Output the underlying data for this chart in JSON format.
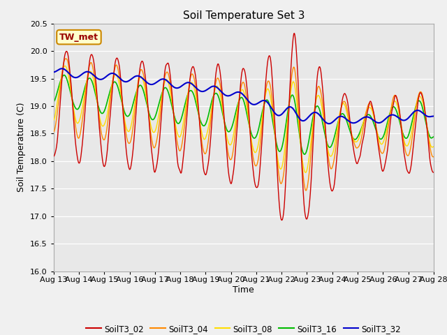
{
  "title": "Soil Temperature Set 3",
  "xlabel": "Time",
  "ylabel": "Soil Temperature (C)",
  "ylim": [
    16.0,
    20.5
  ],
  "xtick_labels": [
    "Aug 13",
    "Aug 14",
    "Aug 15",
    "Aug 16",
    "Aug 17",
    "Aug 18",
    "Aug 19",
    "Aug 20",
    "Aug 21",
    "Aug 22",
    "Aug 23",
    "Aug 24",
    "Aug 25",
    "Aug 26",
    "Aug 27",
    "Aug 28"
  ],
  "legend_labels": [
    "SoilT3_02",
    "SoilT3_04",
    "SoilT3_08",
    "SoilT3_16",
    "SoilT3_32"
  ],
  "colors": {
    "SoilT3_02": "#cc0000",
    "SoilT3_04": "#ff8800",
    "SoilT3_08": "#ffdd00",
    "SoilT3_16": "#00bb00",
    "SoilT3_32": "#0000cc"
  },
  "annotation_text": "TW_met",
  "annotation_color": "#990000",
  "annotation_bg": "#ffffcc",
  "annotation_border": "#cc8800",
  "fig_bg": "#f0f0f0",
  "plot_bg": "#e8e8e8",
  "grid_color": "#ffffff",
  "title_fontsize": 11,
  "axis_fontsize": 9,
  "tick_fontsize": 8
}
